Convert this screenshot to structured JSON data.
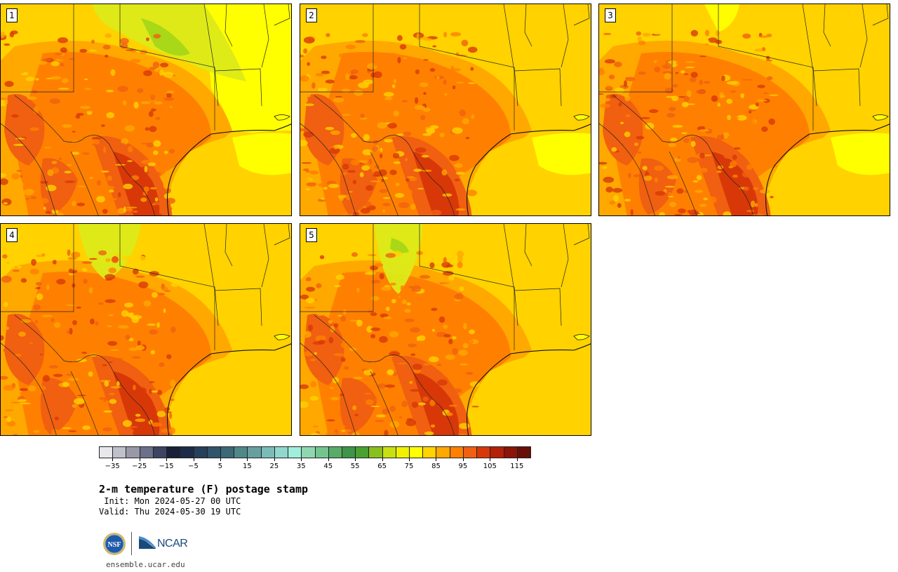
{
  "panels": [
    {
      "label": "1"
    },
    {
      "label": "2"
    },
    {
      "label": "3"
    },
    {
      "label": "4"
    },
    {
      "label": "5"
    }
  ],
  "colorbar": {
    "colors": [
      "#e8e8ec",
      "#c0c0cc",
      "#9898a8",
      "#6c7088",
      "#3c4460",
      "#1a2038",
      "#1c2c48",
      "#26405a",
      "#30546a",
      "#3c6878",
      "#508888",
      "#68a0a0",
      "#7cbcb8",
      "#90d8cc",
      "#a0eedc",
      "#8ed8b0",
      "#74c490",
      "#58ac68",
      "#3e9448",
      "#4aa030",
      "#88c020",
      "#c8e010",
      "#f0f000",
      "#ffff00",
      "#ffd200",
      "#ffa800",
      "#ff8000",
      "#f06010",
      "#d83808",
      "#b42008",
      "#8c1408",
      "#681008"
    ],
    "tick_labels": [
      "−35",
      "−25",
      "−15",
      "−5",
      "5",
      "15",
      "25",
      "35",
      "45",
      "55",
      "65",
      "75",
      "85",
      "95",
      "105",
      "115"
    ]
  },
  "title": "2-m temperature (F) postage stamp",
  "init_line": " Init: Mon 2024-05-27 00 UTC",
  "valid_line": "Valid: Thu 2024-05-30 19 UTC",
  "logo": {
    "ncar_text": "NCAR",
    "nsf_text": "NSF"
  },
  "url": "ensemble.ucar.edu"
}
